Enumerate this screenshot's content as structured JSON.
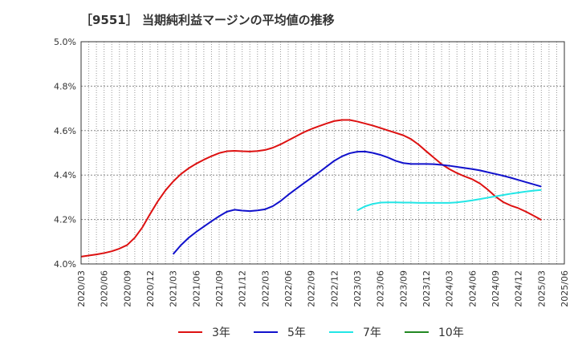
{
  "chart_data": {
    "type": "line",
    "title": "［9551］ 当期純利益マージンの平均値の推移",
    "xlabel": "",
    "ylabel": "",
    "ylim": [
      4.0,
      5.0
    ],
    "y_ticks": [
      "4.0%",
      "4.2%",
      "4.4%",
      "4.6%",
      "4.8%",
      "5.0%"
    ],
    "x_ticks": [
      "2020/03",
      "2020/06",
      "2020/09",
      "2020/12",
      "2021/03",
      "2021/06",
      "2021/09",
      "2021/12",
      "2022/03",
      "2022/06",
      "2022/09",
      "2022/12",
      "2023/03",
      "2023/06",
      "2023/09",
      "2023/12",
      "2024/03",
      "2024/06",
      "2024/09",
      "2024/12",
      "2025/03",
      "2025/06"
    ],
    "grid": true,
    "legend_position": "bottom",
    "series": [
      {
        "name": "3年",
        "color": "#dd1111",
        "points": [
          [
            "2020/03",
            4.033
          ],
          [
            "2020/04",
            4.038
          ],
          [
            "2020/05",
            4.043
          ],
          [
            "2020/06",
            4.049
          ],
          [
            "2020/07",
            4.057
          ],
          [
            "2020/08",
            4.069
          ],
          [
            "2020/09",
            4.085
          ],
          [
            "2020/10",
            4.118
          ],
          [
            "2020/11",
            4.165
          ],
          [
            "2020/12",
            4.225
          ],
          [
            "2021/01",
            4.282
          ],
          [
            "2021/02",
            4.331
          ],
          [
            "2021/03",
            4.371
          ],
          [
            "2021/04",
            4.404
          ],
          [
            "2021/05",
            4.43
          ],
          [
            "2021/06",
            4.451
          ],
          [
            "2021/07",
            4.469
          ],
          [
            "2021/08",
            4.485
          ],
          [
            "2021/09",
            4.499
          ],
          [
            "2021/10",
            4.507
          ],
          [
            "2021/11",
            4.509
          ],
          [
            "2021/12",
            4.507
          ],
          [
            "2022/01",
            4.506
          ],
          [
            "2022/02",
            4.508
          ],
          [
            "2022/03",
            4.513
          ],
          [
            "2022/04",
            4.523
          ],
          [
            "2022/05",
            4.538
          ],
          [
            "2022/06",
            4.556
          ],
          [
            "2022/07",
            4.574
          ],
          [
            "2022/08",
            4.592
          ],
          [
            "2022/09",
            4.607
          ],
          [
            "2022/10",
            4.62
          ],
          [
            "2022/11",
            4.632
          ],
          [
            "2022/12",
            4.643
          ],
          [
            "2023/01",
            4.648
          ],
          [
            "2023/02",
            4.648
          ],
          [
            "2023/03",
            4.641
          ],
          [
            "2023/04",
            4.632
          ],
          [
            "2023/05",
            4.623
          ],
          [
            "2023/06",
            4.612
          ],
          [
            "2023/07",
            4.601
          ],
          [
            "2023/08",
            4.59
          ],
          [
            "2023/09",
            4.579
          ],
          [
            "2023/10",
            4.562
          ],
          [
            "2023/11",
            4.537
          ],
          [
            "2023/12",
            4.507
          ],
          [
            "2024/01",
            4.478
          ],
          [
            "2024/02",
            4.449
          ],
          [
            "2024/03",
            4.427
          ],
          [
            "2024/04",
            4.409
          ],
          [
            "2024/05",
            4.394
          ],
          [
            "2024/06",
            4.381
          ],
          [
            "2024/07",
            4.362
          ],
          [
            "2024/08",
            4.335
          ],
          [
            "2024/09",
            4.304
          ],
          [
            "2024/10",
            4.279
          ],
          [
            "2024/11",
            4.263
          ],
          [
            "2024/12",
            4.251
          ],
          [
            "2025/01",
            4.235
          ],
          [
            "2025/02",
            4.217
          ],
          [
            "2025/03",
            4.198
          ]
        ]
      },
      {
        "name": "5年",
        "color": "#1111cc",
        "points": [
          [
            "2021/03",
            4.044
          ],
          [
            "2021/04",
            4.084
          ],
          [
            "2021/05",
            4.117
          ],
          [
            "2021/06",
            4.144
          ],
          [
            "2021/07",
            4.168
          ],
          [
            "2021/08",
            4.192
          ],
          [
            "2021/09",
            4.215
          ],
          [
            "2021/10",
            4.235
          ],
          [
            "2021/11",
            4.244
          ],
          [
            "2021/12",
            4.24
          ],
          [
            "2022/01",
            4.238
          ],
          [
            "2022/02",
            4.241
          ],
          [
            "2022/03",
            4.246
          ],
          [
            "2022/04",
            4.26
          ],
          [
            "2022/05",
            4.283
          ],
          [
            "2022/06",
            4.311
          ],
          [
            "2022/07",
            4.337
          ],
          [
            "2022/08",
            4.362
          ],
          [
            "2022/09",
            4.387
          ],
          [
            "2022/10",
            4.412
          ],
          [
            "2022/11",
            4.438
          ],
          [
            "2022/12",
            4.464
          ],
          [
            "2023/01",
            4.484
          ],
          [
            "2023/02",
            4.498
          ],
          [
            "2023/03",
            4.505
          ],
          [
            "2023/04",
            4.506
          ],
          [
            "2023/05",
            4.5
          ],
          [
            "2023/06",
            4.491
          ],
          [
            "2023/07",
            4.479
          ],
          [
            "2023/08",
            4.464
          ],
          [
            "2023/09",
            4.454
          ],
          [
            "2023/10",
            4.45
          ],
          [
            "2023/11",
            4.45
          ],
          [
            "2023/12",
            4.45
          ],
          [
            "2024/01",
            4.449
          ],
          [
            "2024/02",
            4.446
          ],
          [
            "2024/03",
            4.442
          ],
          [
            "2024/04",
            4.437
          ],
          [
            "2024/05",
            4.432
          ],
          [
            "2024/06",
            4.427
          ],
          [
            "2024/07",
            4.421
          ],
          [
            "2024/08",
            4.413
          ],
          [
            "2024/09",
            4.405
          ],
          [
            "2024/10",
            4.397
          ],
          [
            "2024/11",
            4.388
          ],
          [
            "2024/12",
            4.378
          ],
          [
            "2025/01",
            4.368
          ],
          [
            "2025/02",
            4.358
          ],
          [
            "2025/03",
            4.348
          ]
        ]
      },
      {
        "name": "7年",
        "color": "#22e6e6",
        "points": [
          [
            "2023/03",
            4.241
          ],
          [
            "2023/04",
            4.259
          ],
          [
            "2023/05",
            4.27
          ],
          [
            "2023/06",
            4.276
          ],
          [
            "2023/07",
            4.277
          ],
          [
            "2023/08",
            4.277
          ],
          [
            "2023/09",
            4.276
          ],
          [
            "2023/10",
            4.276
          ],
          [
            "2023/11",
            4.275
          ],
          [
            "2023/12",
            4.275
          ],
          [
            "2024/01",
            4.275
          ],
          [
            "2024/02",
            4.275
          ],
          [
            "2024/03",
            4.275
          ],
          [
            "2024/04",
            4.277
          ],
          [
            "2024/05",
            4.281
          ],
          [
            "2024/06",
            4.286
          ],
          [
            "2024/07",
            4.292
          ],
          [
            "2024/08",
            4.298
          ],
          [
            "2024/09",
            4.304
          ],
          [
            "2024/10",
            4.31
          ],
          [
            "2024/11",
            4.316
          ],
          [
            "2024/12",
            4.321
          ],
          [
            "2025/01",
            4.326
          ],
          [
            "2025/02",
            4.33
          ],
          [
            "2025/03",
            4.333
          ]
        ]
      },
      {
        "name": "10年",
        "color": "#228822",
        "points": []
      }
    ]
  }
}
